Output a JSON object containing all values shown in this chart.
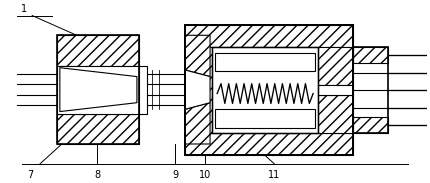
{
  "background": "#ffffff",
  "lc": "#000000",
  "lw": 0.8,
  "fig_width": 4.3,
  "fig_height": 1.83,
  "dpi": 100,
  "hatch": "///",
  "font_size": 7
}
